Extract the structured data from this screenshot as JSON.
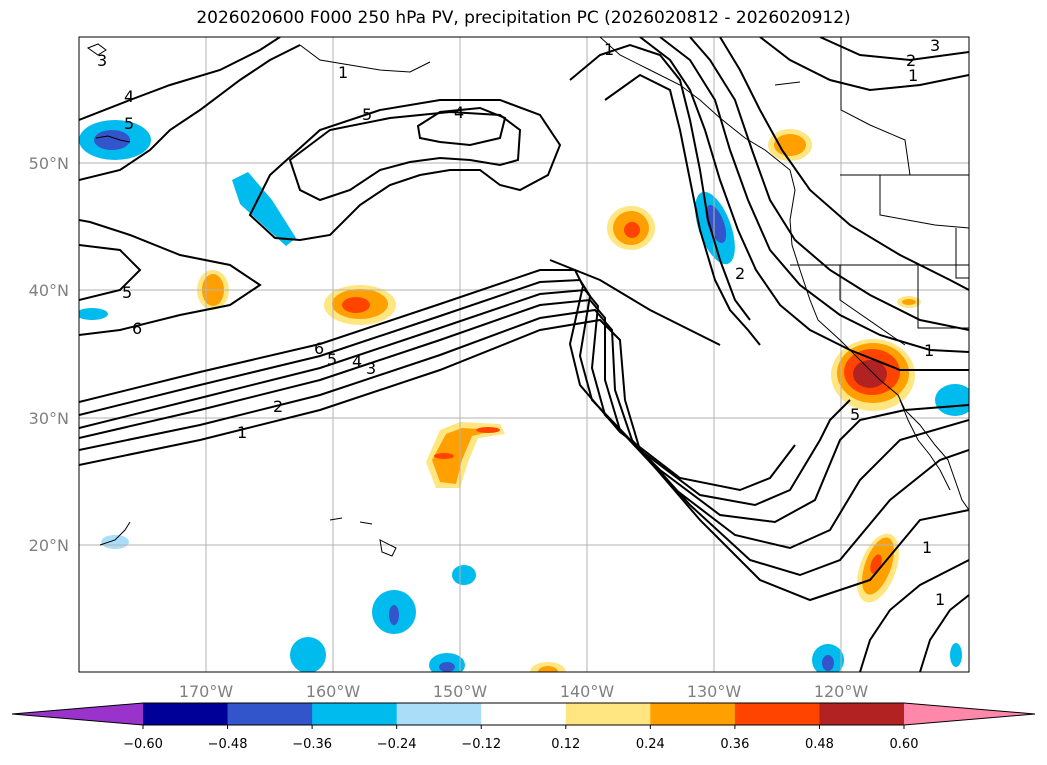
{
  "title": "2026020600 F000 250 hPa PV, precipitation PC (2026020812 - 2026020912)",
  "map": {
    "lon_ticks": [
      "170°W",
      "160°W",
      "150°W",
      "140°W",
      "130°W",
      "120°W"
    ],
    "lat_ticks": [
      "50°N",
      "40°N",
      "30°N",
      "20°N"
    ],
    "grid": true,
    "contour_field": "250 hPa PV",
    "contour_labels": [
      "3",
      "1",
      "4",
      "5",
      "5",
      "4",
      "1",
      "2",
      "1",
      "3",
      "5",
      "6",
      "6",
      "5",
      "4",
      "3",
      "2",
      "1",
      "2",
      "1",
      "5",
      "1",
      "1"
    ]
  },
  "colorbar": {
    "ticks": [
      "−0.60",
      "−0.48",
      "−0.36",
      "−0.24",
      "−0.12",
      "0.12",
      "0.24",
      "0.36",
      "0.48",
      "0.60"
    ],
    "colors": [
      "#9933cc",
      "#000099",
      "#3355cc",
      "#00bbee",
      "#aaddf8",
      "#ffffff",
      "#ffe680",
      "#ffa000",
      "#ff4400",
      "#b22222",
      "#ff88aa"
    ],
    "extend": "both"
  }
}
